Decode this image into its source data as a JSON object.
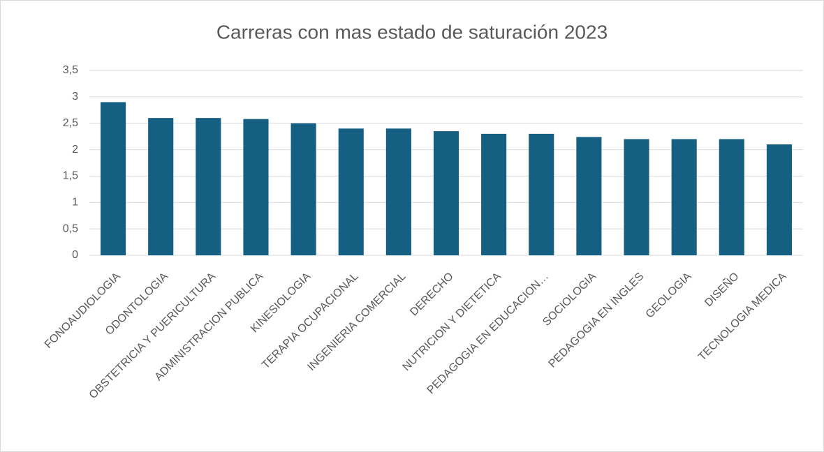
{
  "chart_data": {
    "type": "bar",
    "title": "Carreras con mas estado de saturación 2023",
    "categories": [
      "FONOAUDIOLOGIA",
      "ODONTOLOGIA",
      "OBSTETRICIA Y PUERICULTURA",
      "ADMINISTRACION PUBLICA",
      "KINESIOLOGIA",
      "TERAPIA OCUPACIONAL",
      "INGENIERIA COMERCIAL",
      "DERECHO",
      "NUTRICION Y DIETETICA",
      "PEDAGOGIA EN EDUCACION…",
      "SOCIOLOGIA",
      "PEDAGOGIA EN INGLES",
      "GEOLOGIA",
      "DISEÑO",
      "TECNOLOGIA MEDICA"
    ],
    "values": [
      2.9,
      2.6,
      2.6,
      2.58,
      2.5,
      2.4,
      2.4,
      2.35,
      2.3,
      2.3,
      2.24,
      2.2,
      2.2,
      2.2,
      2.1
    ],
    "color": "#156082",
    "ylim": [
      0,
      3.5
    ],
    "yticks": [
      0,
      {
        "value": 0.5,
        "label": "0,5"
      },
      1,
      {
        "value": 1.5,
        "label": "1,5"
      },
      2,
      {
        "value": 2.5,
        "label": "2,5"
      },
      3,
      {
        "value": 3.5,
        "label": "3,5"
      }
    ],
    "grid": true
  }
}
